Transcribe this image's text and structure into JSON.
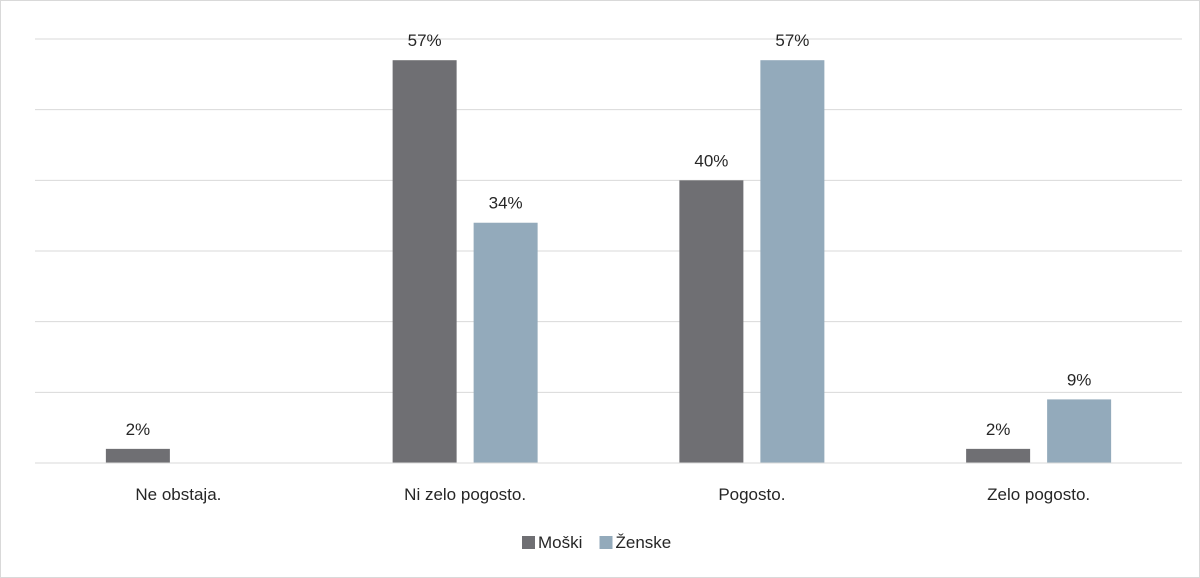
{
  "chart_data": {
    "type": "bar",
    "title": "",
    "xlabel": "",
    "ylabel": "",
    "ylim": [
      0,
      60
    ],
    "grid": true,
    "legend_position": "bottom",
    "categories": [
      "Ne obstaja.",
      "Ni zelo pogosto.",
      "Pogosto.",
      "Zelo pogosto."
    ],
    "series": [
      {
        "name": "Moški",
        "color": "#6f6f73",
        "values": [
          2,
          57,
          40,
          2
        ],
        "labels": [
          "2%",
          "57%",
          "40%",
          "2%"
        ]
      },
      {
        "name": "Ženske",
        "color": "#93aabb",
        "values": [
          0,
          34,
          57,
          9
        ],
        "labels": [
          "",
          "34%",
          "57%",
          "9%"
        ]
      }
    ]
  }
}
